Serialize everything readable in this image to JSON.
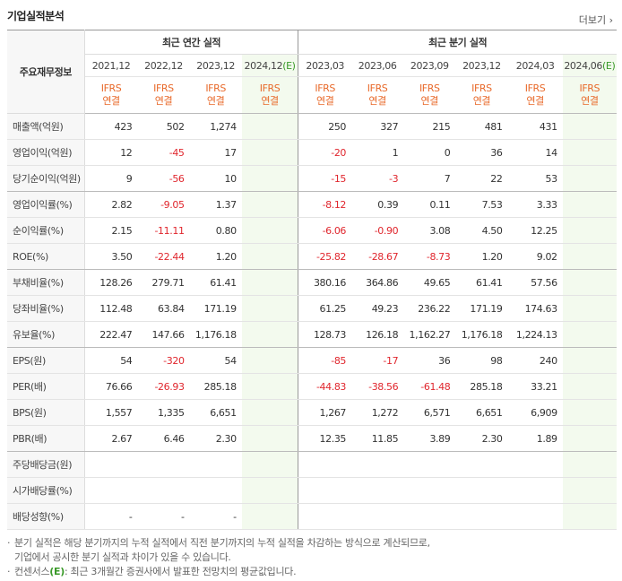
{
  "header": {
    "title": "기업실적분석",
    "more": "더보기"
  },
  "table": {
    "corner": "주요재무정보",
    "groups": [
      {
        "label": "최근 연간 실적",
        "columns": [
          {
            "period": "2021,12",
            "standard": "IFRS",
            "basis": "연결"
          },
          {
            "period": "2022,12",
            "standard": "IFRS",
            "basis": "연결"
          },
          {
            "period": "2023,12",
            "standard": "IFRS",
            "basis": "연결"
          },
          {
            "period": "2024,12",
            "estimate": "(E)",
            "standard": "IFRS",
            "basis": "연결"
          }
        ]
      },
      {
        "label": "최근 분기 실적",
        "columns": [
          {
            "period": "2023,03",
            "standard": "IFRS",
            "basis": "연결"
          },
          {
            "period": "2023,06",
            "standard": "IFRS",
            "basis": "연결"
          },
          {
            "period": "2023,09",
            "standard": "IFRS",
            "basis": "연결"
          },
          {
            "period": "2023,12",
            "standard": "IFRS",
            "basis": "연결"
          },
          {
            "period": "2024,03",
            "standard": "IFRS",
            "basis": "연결"
          },
          {
            "period": "2024,06",
            "estimate": "(E)",
            "standard": "IFRS",
            "basis": "연결"
          }
        ]
      }
    ],
    "rows": [
      {
        "label": "매출액(억원)",
        "values": [
          "423",
          "502",
          "1,274",
          null,
          "250",
          "327",
          "215",
          "481",
          "431",
          null
        ]
      },
      {
        "label": "영업이익(억원)",
        "values": [
          "12",
          "-45",
          "17",
          null,
          "-20",
          "1",
          "0",
          "36",
          "14",
          null
        ]
      },
      {
        "label": "당기순이익(억원)",
        "values": [
          "9",
          "-56",
          "10",
          null,
          "-15",
          "-3",
          "7",
          "22",
          "53",
          null
        ]
      },
      {
        "label": "영업이익률(%)",
        "values": [
          "2.82",
          "-9.05",
          "1.37",
          null,
          "-8.12",
          "0.39",
          "0.11",
          "7.53",
          "3.33",
          null
        ]
      },
      {
        "label": "순이익률(%)",
        "values": [
          "2.15",
          "-11.11",
          "0.80",
          null,
          "-6.06",
          "-0.90",
          "3.08",
          "4.50",
          "12.25",
          null
        ]
      },
      {
        "label": "ROE(%)",
        "values": [
          "3.50",
          "-22.44",
          "1.20",
          null,
          "-25.82",
          "-28.67",
          "-8.73",
          "1.20",
          "9.02",
          null
        ]
      },
      {
        "label": "부채비율(%)",
        "values": [
          "128.26",
          "279.71",
          "61.41",
          null,
          "380.16",
          "364.86",
          "49.65",
          "61.41",
          "57.56",
          null
        ]
      },
      {
        "label": "당좌비율(%)",
        "values": [
          "112.48",
          "63.84",
          "171.19",
          null,
          "61.25",
          "49.23",
          "236.22",
          "171.19",
          "174.63",
          null
        ]
      },
      {
        "label": "유보율(%)",
        "values": [
          "222.47",
          "147.66",
          "1,176.18",
          null,
          "128.73",
          "126.18",
          "1,162.27",
          "1,176.18",
          "1,224.13",
          null
        ]
      },
      {
        "label": "EPS(원)",
        "values": [
          "54",
          "-320",
          "54",
          null,
          "-85",
          "-17",
          "36",
          "98",
          "240",
          null
        ]
      },
      {
        "label": "PER(배)",
        "values": [
          "76.66",
          "-26.93",
          "285.18",
          null,
          "-44.83",
          "-38.56",
          "-61.48",
          "285.18",
          "33.21",
          null
        ]
      },
      {
        "label": "BPS(원)",
        "values": [
          "1,557",
          "1,335",
          "6,651",
          null,
          "1,267",
          "1,272",
          "6,571",
          "6,651",
          "6,909",
          null
        ]
      },
      {
        "label": "PBR(배)",
        "values": [
          "2.67",
          "6.46",
          "2.30",
          null,
          "12.35",
          "11.85",
          "3.89",
          "2.30",
          "1.89",
          null
        ]
      },
      {
        "label": "주당배당금(원)",
        "values": [
          null,
          null,
          null,
          null,
          null,
          null,
          null,
          null,
          null,
          null
        ]
      },
      {
        "label": "시가배당률(%)",
        "values": [
          null,
          null,
          null,
          null,
          null,
          null,
          null,
          null,
          null,
          null
        ]
      },
      {
        "label": "배당성향(%)",
        "values": [
          "-",
          "-",
          "-",
          null,
          null,
          null,
          null,
          null,
          null,
          null
        ]
      }
    ]
  },
  "notes": [
    {
      "lines": [
        "분기 실적은 해당 분기까지의 누적 실적에서 직전 분기까지의 누적 실적을 차감하는 방식으로 계산되므로,",
        "기업에서 공시한 분기 실적과 차이가 있을 수 있습니다."
      ]
    },
    {
      "prefix": "컨센서스",
      "marker": "(E)",
      "text": ": 최근 3개월간 증권사에서 발표한 전망치의 평균값입니다."
    }
  ]
}
